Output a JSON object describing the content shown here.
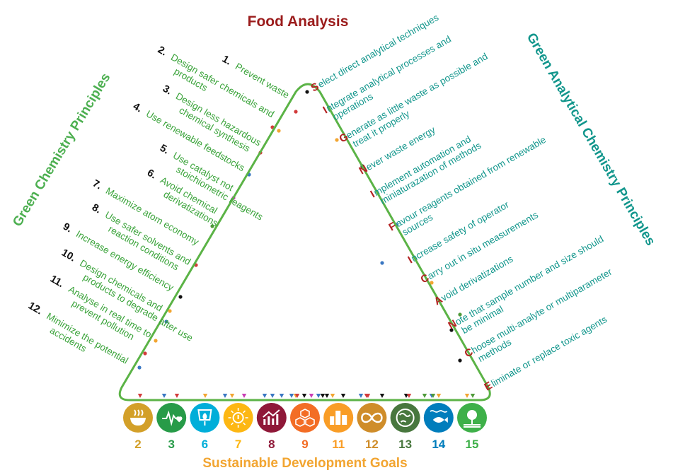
{
  "title_top": "Food Analysis",
  "title_left": "Green Chemistry Principles",
  "title_right": "Green Analytical Chemistry Principles",
  "title_bottom": "Sustainable Development Goals",
  "gc_principles": [
    {
      "num": "1.",
      "lines": [
        "Prevent waste"
      ]
    },
    {
      "num": "2.",
      "lines": [
        "Design safer chemicals and",
        "products"
      ]
    },
    {
      "num": "3.",
      "lines": [
        "Design less hazardous",
        "chemical synthesis"
      ]
    },
    {
      "num": "4.",
      "lines": [
        "Use renewable feedstocks"
      ]
    },
    {
      "num": "5.",
      "lines": [
        "Use catalyst not",
        "stoichiometric reagents"
      ]
    },
    {
      "num": "6.",
      "lines": [
        "Avoid chemical",
        "derivatizations"
      ]
    },
    {
      "num": "7.",
      "lines": [
        "Maximize atom economy"
      ]
    },
    {
      "num": "8.",
      "lines": [
        "Use safer solvents and",
        "reaction conditions"
      ]
    },
    {
      "num": "9.",
      "lines": [
        "Increase energy efficiency"
      ]
    },
    {
      "num": "10.",
      "lines": [
        "Design chemicals and",
        "products to degrade after use"
      ]
    },
    {
      "num": "11.",
      "lines": [
        "Analyse in real time to",
        "prevent pollution"
      ]
    },
    {
      "num": "12.",
      "lines": [
        "Minimize the potential",
        "accidents"
      ]
    }
  ],
  "gac_principles": [
    {
      "initial": "S",
      "lines": [
        "elect direct analytical techniques"
      ]
    },
    {
      "initial": "I",
      "lines": [
        "ntegrate analytical processes and",
        "operations"
      ]
    },
    {
      "initial": "G",
      "lines": [
        "enerate as little waste as possible and",
        "treat it properly"
      ]
    },
    {
      "initial": "N",
      "lines": [
        "ever waste energy"
      ]
    },
    {
      "initial": "I",
      "lines": [
        "mplement automation and",
        "miniaturazation of methods"
      ]
    },
    {
      "initial": "F",
      "lines": [
        "avour reagents obtained from renewable",
        "sources"
      ]
    },
    {
      "initial": "I",
      "lines": [
        "ncrease safety of operator"
      ]
    },
    {
      "initial": "C",
      "lines": [
        "arry out in situ measurements"
      ]
    },
    {
      "initial": "A",
      "lines": [
        "void derivatizations"
      ]
    },
    {
      "initial": "N",
      "lines": [
        "ote that sample number and size should",
        "be minimal"
      ]
    },
    {
      "initial": "C",
      "lines": [
        "hoose multi-analyte or multiparameter",
        "methods"
      ]
    },
    {
      "initial": "E",
      "lines": [
        "liminate or replace toxic agents"
      ]
    }
  ],
  "sdgs": [
    {
      "num": "2",
      "color": "#d3a029",
      "icon": "bowl-icon"
    },
    {
      "num": "3",
      "color": "#279b48",
      "icon": "heartbeat-icon"
    },
    {
      "num": "6",
      "color": "#00aed9",
      "icon": "water-drop-icon"
    },
    {
      "num": "7",
      "color": "#fdb713",
      "icon": "power-sun-icon"
    },
    {
      "num": "8",
      "color": "#8f1838",
      "icon": "growth-chart-icon"
    },
    {
      "num": "9",
      "color": "#f36d25",
      "icon": "cubes-icon"
    },
    {
      "num": "11",
      "color": "#f99d26",
      "icon": "city-icon"
    },
    {
      "num": "12",
      "color": "#cf8d2a",
      "icon": "infinity-icon"
    },
    {
      "num": "13",
      "color": "#48773e",
      "icon": "globe-eye-icon"
    },
    {
      "num": "14",
      "color": "#007dbc",
      "icon": "fish-icon"
    },
    {
      "num": "15",
      "color": "#3eb049",
      "icon": "tree-icon"
    }
  ],
  "colors": {
    "triangle": "#5bb346",
    "red": "#d23b3b",
    "orange": "#f2a531",
    "blue": "#3a77c2",
    "black": "#111111",
    "magenta": "#c93db4",
    "green": "#4f9a3a"
  }
}
